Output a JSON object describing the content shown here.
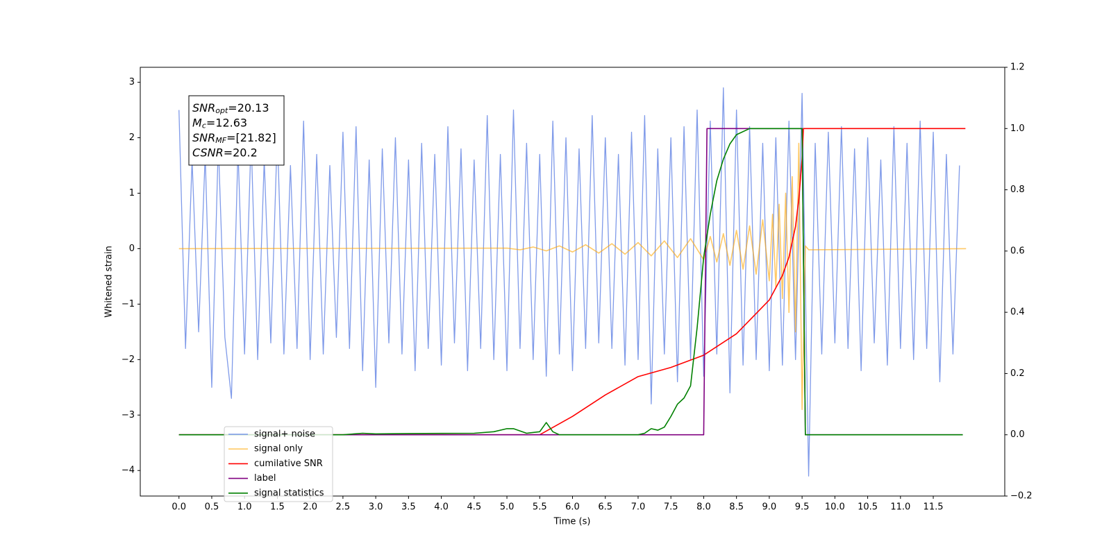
{
  "chart_data": {
    "type": "line",
    "xlabel": "Time (s)",
    "ylabel": "Whitened strain",
    "xlim": [
      -0.59,
      12.59
    ],
    "ylim": [
      -4.46,
      3.27
    ],
    "y2lim": [
      -0.2,
      1.2
    ],
    "xticks": [
      {
        "value": 0,
        "label": "0.0"
      },
      0.5,
      {
        "value": 1,
        "label": "1.0"
      },
      1.5,
      {
        "value": 2,
        "label": "2.0"
      },
      2.5,
      {
        "value": 3,
        "label": "3.0"
      },
      3.5,
      {
        "value": 4,
        "label": "4.0"
      },
      4.5,
      {
        "value": 5,
        "label": "5.0"
      },
      5.5,
      {
        "value": 6,
        "label": "6.0"
      },
      6.5,
      {
        "value": 7,
        "label": "7.0"
      },
      7.5,
      {
        "value": 8,
        "label": "8.0"
      },
      8.5,
      {
        "value": 9,
        "label": "9.0"
      },
      9.5,
      {
        "value": 10,
        "label": "10.0"
      },
      10.5,
      {
        "value": 11,
        "label": "11.0"
      },
      11.5
    ],
    "yticks": [
      {
        "value": -4,
        "label": "−4"
      },
      {
        "value": -3,
        "label": "−3"
      },
      {
        "value": -2,
        "label": "−2"
      },
      {
        "value": -1,
        "label": "−1"
      },
      0,
      1,
      2,
      3
    ],
    "y2ticks": [
      {
        "value": -0.2,
        "label": "−0.2"
      },
      {
        "value": 0,
        "label": "0.0"
      },
      0.2,
      0.4,
      0.6,
      0.8,
      {
        "value": 1,
        "label": "1.0"
      },
      1.2
    ],
    "legend": "lower left",
    "annotations": [
      {
        "text": "SNR",
        "sub": "opt",
        "rest": "=20.13"
      },
      {
        "text": "M",
        "sub": "c",
        "rest": "=12.63"
      },
      {
        "text": "SNR",
        "sub": "MF",
        "rest": "=[21.82]"
      },
      {
        "text": "CSNR",
        "sub": null,
        "rest": "=20.2"
      }
    ],
    "series": [
      {
        "name": "signal+ noise",
        "color": "#7895e8",
        "axis": "y",
        "x": [
          0.0,
          0.1,
          0.2,
          0.3,
          0.4,
          0.5,
          0.6,
          0.7,
          0.8,
          0.9,
          1.0,
          1.1,
          1.2,
          1.3,
          1.4,
          1.5,
          1.6,
          1.7,
          1.8,
          1.9,
          2.0,
          2.1,
          2.2,
          2.3,
          2.4,
          2.5,
          2.6,
          2.7,
          2.8,
          2.9,
          3.0,
          3.1,
          3.2,
          3.3,
          3.4,
          3.5,
          3.6,
          3.7,
          3.8,
          3.9,
          4.0,
          4.1,
          4.2,
          4.3,
          4.4,
          4.5,
          4.6,
          4.7,
          4.8,
          4.9,
          5.0,
          5.1,
          5.2,
          5.3,
          5.4,
          5.5,
          5.6,
          5.7,
          5.8,
          5.9,
          6.0,
          6.1,
          6.2,
          6.3,
          6.4,
          6.5,
          6.6,
          6.7,
          6.8,
          6.9,
          7.0,
          7.1,
          7.2,
          7.3,
          7.4,
          7.5,
          7.6,
          7.7,
          7.8,
          7.9,
          8.0,
          8.1,
          8.2,
          8.3,
          8.4,
          8.5,
          8.6,
          8.7,
          8.8,
          8.9,
          9.0,
          9.1,
          9.2,
          9.3,
          9.4,
          9.5,
          9.6,
          9.7,
          9.8,
          9.9,
          10.0,
          10.1,
          10.2,
          10.3,
          10.4,
          10.5,
          10.6,
          10.7,
          10.8,
          10.9,
          11.0,
          11.1,
          11.2,
          11.3,
          11.4,
          11.5,
          11.6,
          11.7,
          11.8,
          11.9
        ],
        "values": [
          2.5,
          -1.8,
          1.6,
          -1.5,
          1.7,
          -2.5,
          1.9,
          -1.6,
          -2.7,
          1.8,
          -1.9,
          2.0,
          -2.0,
          1.6,
          -1.7,
          2.1,
          -1.9,
          1.5,
          -1.8,
          2.3,
          -2.0,
          1.7,
          -1.9,
          1.5,
          -1.6,
          2.1,
          -1.8,
          2.2,
          -2.2,
          1.6,
          -2.5,
          1.8,
          -1.7,
          2.0,
          -1.9,
          1.6,
          -2.2,
          1.9,
          -1.8,
          1.7,
          -2.1,
          2.2,
          -1.7,
          1.8,
          -2.2,
          1.6,
          -1.8,
          2.4,
          -2.0,
          1.7,
          -2.2,
          2.5,
          -1.8,
          1.9,
          -2.0,
          1.7,
          -2.3,
          2.3,
          -1.9,
          2.0,
          -2.2,
          1.8,
          -1.8,
          2.4,
          -1.7,
          2.0,
          -1.8,
          1.7,
          -2.1,
          2.1,
          -2.0,
          2.4,
          -2.8,
          1.8,
          -1.9,
          2.0,
          -2.4,
          2.2,
          -2.0,
          2.5,
          -2.3,
          2.3,
          -1.9,
          2.9,
          -2.6,
          2.5,
          -2.1,
          2.2,
          -2.0,
          1.9,
          -2.2,
          2.0,
          -2.1,
          2.3,
          -2.0,
          2.8,
          -4.1,
          1.9,
          -1.9,
          2.1,
          -1.7,
          2.2,
          -1.8,
          1.8,
          -2.2,
          2.0,
          -1.7,
          1.6,
          -2.1,
          2.2,
          -1.8,
          1.9,
          -2.0,
          2.3,
          -1.8,
          2.1,
          -2.4,
          1.7,
          -1.9,
          1.5
        ]
      },
      {
        "name": "signal only",
        "color": "#ffa500",
        "axis": "y",
        "x": [
          0.0,
          5.0,
          5.2,
          5.4,
          5.6,
          5.8,
          6.0,
          6.2,
          6.4,
          6.6,
          6.8,
          7.0,
          7.2,
          7.4,
          7.6,
          7.8,
          8.0,
          8.1,
          8.2,
          8.3,
          8.4,
          8.5,
          8.6,
          8.7,
          8.8,
          8.9,
          9.0,
          9.05,
          9.1,
          9.15,
          9.2,
          9.25,
          9.3,
          9.35,
          9.4,
          9.45,
          9.5,
          9.55,
          9.6,
          12.0
        ],
        "values": [
          0,
          0.01,
          -0.02,
          0.03,
          -0.04,
          0.05,
          -0.06,
          0.07,
          -0.08,
          0.09,
          -0.1,
          0.11,
          -0.13,
          0.14,
          -0.16,
          0.18,
          -0.2,
          0.22,
          -0.24,
          0.27,
          -0.3,
          0.33,
          -0.37,
          0.41,
          -0.46,
          0.52,
          -0.58,
          0.62,
          -0.7,
          0.8,
          -0.9,
          1.0,
          -1.15,
          1.3,
          -1.5,
          1.9,
          -2.9,
          0.05,
          -0.02,
          0
        ]
      },
      {
        "name": "cumilative SNR",
        "color": "#ff0000",
        "axis": "y2",
        "x": [
          0,
          5.5,
          6.0,
          6.5,
          7.0,
          7.5,
          8.0,
          8.5,
          9.0,
          9.2,
          9.3,
          9.4,
          9.45,
          9.5,
          9.52,
          11.99
        ],
        "values": [
          0,
          0,
          0.06,
          0.13,
          0.19,
          0.22,
          0.26,
          0.33,
          0.44,
          0.52,
          0.58,
          0.68,
          0.77,
          0.9,
          1.0,
          1.0
        ]
      },
      {
        "name": "label",
        "color": "#800080",
        "axis": "y2",
        "x": [
          0,
          8.0,
          8.05,
          9.5,
          9.55,
          11.95
        ],
        "values": [
          0,
          0,
          1,
          1,
          0,
          0
        ]
      },
      {
        "name": "signal statistics",
        "color": "#008000",
        "axis": "y2",
        "x": [
          0,
          2.5,
          2.8,
          3.0,
          3.5,
          4.5,
          4.8,
          5.0,
          5.1,
          5.3,
          5.5,
          5.6,
          5.7,
          5.8,
          6.0,
          7.0,
          7.1,
          7.2,
          7.3,
          7.4,
          7.5,
          7.6,
          7.7,
          7.8,
          7.9,
          8.0,
          8.05,
          8.1,
          8.2,
          8.3,
          8.4,
          8.5,
          8.7,
          9.0,
          9.4,
          9.5,
          9.55,
          11.95
        ],
        "values": [
          0,
          0,
          0.005,
          0.003,
          0.004,
          0.005,
          0.01,
          0.02,
          0.02,
          0.005,
          0.01,
          0.04,
          0.01,
          0,
          0,
          0,
          0.005,
          0.02,
          0.015,
          0.025,
          0.06,
          0.1,
          0.12,
          0.16,
          0.35,
          0.58,
          0.65,
          0.72,
          0.83,
          0.9,
          0.95,
          0.98,
          1.0,
          1.0,
          1.0,
          1.0,
          0,
          0
        ]
      }
    ]
  }
}
